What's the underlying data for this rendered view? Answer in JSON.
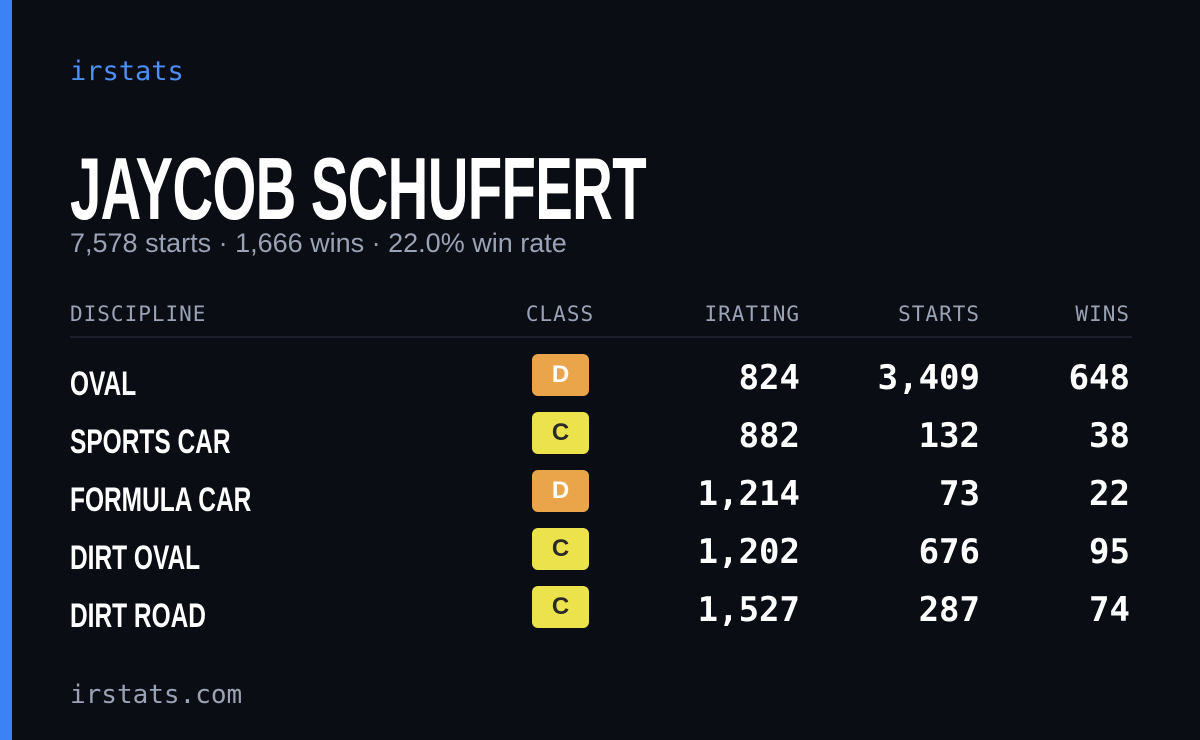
{
  "brand": "irstats",
  "driver": {
    "name": "JAYCOB SCHUFFERT",
    "summary": "7,578 starts · 1,666 wins · 22.0% win rate"
  },
  "table": {
    "headers": [
      "DISCIPLINE",
      "CLASS",
      "IRATING",
      "STARTS",
      "WINS"
    ],
    "rows": [
      {
        "discipline": "OVAL",
        "class": "D",
        "class_color": "#eaa54b",
        "irating": "824",
        "starts": "3,409",
        "wins": "648"
      },
      {
        "discipline": "SPORTS CAR",
        "class": "C",
        "class_color": "#ece24c",
        "irating": "882",
        "starts": "132",
        "wins": "38"
      },
      {
        "discipline": "FORMULA CAR",
        "class": "D",
        "class_color": "#eaa54b",
        "irating": "1,214",
        "starts": "73",
        "wins": "22"
      },
      {
        "discipline": "DIRT OVAL",
        "class": "C",
        "class_color": "#ece24c",
        "irating": "1,202",
        "starts": "676",
        "wins": "95"
      },
      {
        "discipline": "DIRT ROAD",
        "class": "C",
        "class_color": "#ece24c",
        "irating": "1,527",
        "starts": "287",
        "wins": "74"
      }
    ]
  },
  "footer": "irstats.com"
}
